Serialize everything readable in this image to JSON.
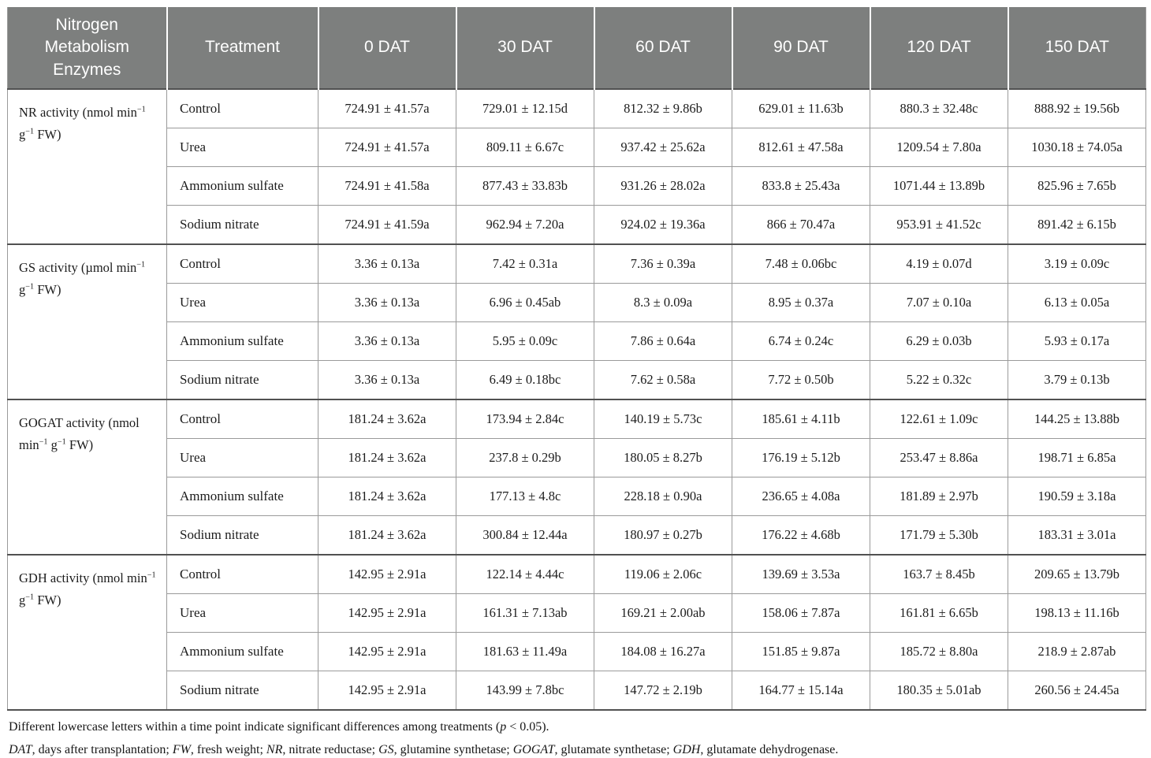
{
  "colors": {
    "header_bg": "#7d7f7e",
    "header_text": "#ffffff",
    "body_text": "#1c1c1c",
    "grid_light": "#9a9a9a",
    "grid_dark": "#515151"
  },
  "table": {
    "headers": [
      "Nitrogen Metabolism Enzymes",
      "Treatment",
      "0 DAT",
      "30 DAT",
      "60 DAT",
      "90 DAT",
      "120 DAT",
      "150 DAT"
    ],
    "groups": [
      {
        "enzyme": "NR activity (nmol min−1 g−1 FW)",
        "label_parts": [
          {
            "t": "NR activity (nmol min"
          },
          {
            "t": "−1",
            "sup": true
          },
          {
            "t": " g"
          },
          {
            "t": "−1",
            "sup": true
          },
          {
            "t": " FW)"
          }
        ],
        "rows": [
          {
            "treatment": "Control",
            "values": [
              "724.91 ± 41.57a",
              "729.01 ± 12.15d",
              "812.32 ± 9.86b",
              "629.01 ± 11.63b",
              "880.3 ± 32.48c",
              "888.92 ± 19.56b"
            ]
          },
          {
            "treatment": "Urea",
            "values": [
              "724.91 ± 41.57a",
              "809.11 ± 6.67c",
              "937.42 ± 25.62a",
              "812.61 ± 47.58a",
              "1209.54 ± 7.80a",
              "1030.18 ± 74.05a"
            ]
          },
          {
            "treatment": "Ammonium sulfate",
            "values": [
              "724.91 ± 41.58a",
              "877.43 ± 33.83b",
              "931.26 ± 28.02a",
              "833.8 ± 25.43a",
              "1071.44 ± 13.89b",
              "825.96 ± 7.65b"
            ]
          },
          {
            "treatment": "Sodium nitrate",
            "values": [
              "724.91 ± 41.59a",
              "962.94 ± 7.20a",
              "924.02 ± 19.36a",
              "866 ± 70.47a",
              "953.91 ± 41.52c",
              "891.42 ± 6.15b"
            ]
          }
        ]
      },
      {
        "enzyme": "GS activity (µmol min−1 g−1 FW)",
        "label_parts": [
          {
            "t": "GS activity (µmol min"
          },
          {
            "t": "−1",
            "sup": true
          },
          {
            "t": " g"
          },
          {
            "t": "−1",
            "sup": true
          },
          {
            "t": " FW)"
          }
        ],
        "rows": [
          {
            "treatment": "Control",
            "values": [
              "3.36 ± 0.13a",
              "7.42 ± 0.31a",
              "7.36 ± 0.39a",
              "7.48 ± 0.06bc",
              "4.19 ± 0.07d",
              "3.19 ± 0.09c"
            ]
          },
          {
            "treatment": "Urea",
            "values": [
              "3.36 ± 0.13a",
              "6.96 ± 0.45ab",
              "8.3 ± 0.09a",
              "8.95 ± 0.37a",
              "7.07 ± 0.10a",
              "6.13 ± 0.05a"
            ]
          },
          {
            "treatment": "Ammonium sulfate",
            "values": [
              "3.36 ± 0.13a",
              "5.95 ± 0.09c",
              "7.86 ± 0.64a",
              "6.74 ± 0.24c",
              "6.29 ± 0.03b",
              "5.93 ± 0.17a"
            ]
          },
          {
            "treatment": "Sodium nitrate",
            "values": [
              "3.36 ± 0.13a",
              "6.49 ± 0.18bc",
              "7.62 ± 0.58a",
              "7.72 ± 0.50b",
              "5.22 ± 0.32c",
              "3.79 ± 0.13b"
            ]
          }
        ]
      },
      {
        "enzyme": "GOGAT activity (nmol min−1 g−1 FW)",
        "label_parts": [
          {
            "t": "GOGAT activity (nmol min"
          },
          {
            "t": "−1",
            "sup": true
          },
          {
            "t": " g"
          },
          {
            "t": "−1",
            "sup": true
          },
          {
            "t": " FW)"
          }
        ],
        "rows": [
          {
            "treatment": "Control",
            "values": [
              "181.24 ± 3.62a",
              "173.94 ± 2.84c",
              "140.19 ± 5.73c",
              "185.61 ± 4.11b",
              "122.61 ± 1.09c",
              "144.25 ± 13.88b"
            ]
          },
          {
            "treatment": "Urea",
            "values": [
              "181.24 ± 3.62a",
              "237.8 ± 0.29b",
              "180.05 ± 8.27b",
              "176.19 ± 5.12b",
              "253.47 ± 8.86a",
              "198.71 ± 6.85a"
            ]
          },
          {
            "treatment": "Ammonium sulfate",
            "values": [
              "181.24 ± 3.62a",
              "177.13 ± 4.8c",
              "228.18 ± 0.90a",
              "236.65 ± 4.08a",
              "181.89 ± 2.97b",
              "190.59 ± 3.18a"
            ]
          },
          {
            "treatment": "Sodium nitrate",
            "values": [
              "181.24 ± 3.62a",
              "300.84 ± 12.44a",
              "180.97 ± 0.27b",
              "176.22 ± 4.68b",
              "171.79 ± 5.30b",
              "183.31 ± 3.01a"
            ]
          }
        ]
      },
      {
        "enzyme": "GDH activity (nmol min−1 g−1 FW)",
        "label_parts": [
          {
            "t": "GDH activity (nmol min"
          },
          {
            "t": "−1",
            "sup": true
          },
          {
            "t": " g"
          },
          {
            "t": "−1",
            "sup": true
          },
          {
            "t": " FW)"
          }
        ],
        "rows": [
          {
            "treatment": "Control",
            "values": [
              "142.95 ± 2.91a",
              "122.14 ± 4.44c",
              "119.06 ± 2.06c",
              "139.69 ± 3.53a",
              "163.7 ± 8.45b",
              "209.65 ± 13.79b"
            ]
          },
          {
            "treatment": "Urea",
            "values": [
              "142.95 ± 2.91a",
              "161.31 ± 7.13ab",
              "169.21 ± 2.00ab",
              "158.06 ± 7.87a",
              "161.81 ± 6.65b",
              "198.13 ± 11.16b"
            ]
          },
          {
            "treatment": "Ammonium sulfate",
            "values": [
              "142.95 ± 2.91a",
              "181.63 ± 11.49a",
              "184.08 ± 16.27a",
              "151.85 ± 9.87a",
              "185.72 ± 8.80a",
              "218.9 ± 2.87ab"
            ]
          },
          {
            "treatment": "Sodium nitrate",
            "values": [
              "142.95 ± 2.91a",
              "143.99 ± 7.8bc",
              "147.72 ± 2.19b",
              "164.77 ± 15.14a",
              "180.35 ± 5.01ab",
              "260.56 ± 24.45a"
            ]
          }
        ]
      }
    ]
  },
  "footnotes": [
    {
      "parts": [
        {
          "t": "Different lowercase letters within a time point indicate significant differences among treatments ("
        },
        {
          "t": "p",
          "i": true
        },
        {
          "t": " < 0.05)."
        }
      ]
    },
    {
      "parts": [
        {
          "t": "DAT",
          "i": true
        },
        {
          "t": ", days after transplantation; "
        },
        {
          "t": "FW",
          "i": true
        },
        {
          "t": ", fresh weight; "
        },
        {
          "t": "NR",
          "i": true
        },
        {
          "t": ", nitrate reductase; "
        },
        {
          "t": "GS",
          "i": true
        },
        {
          "t": ", glutamine synthetase; "
        },
        {
          "t": "GOGAT",
          "i": true
        },
        {
          "t": ", glutamate synthetase; "
        },
        {
          "t": "GDH",
          "i": true
        },
        {
          "t": ", glutamate dehydrogenase."
        }
      ]
    }
  ]
}
